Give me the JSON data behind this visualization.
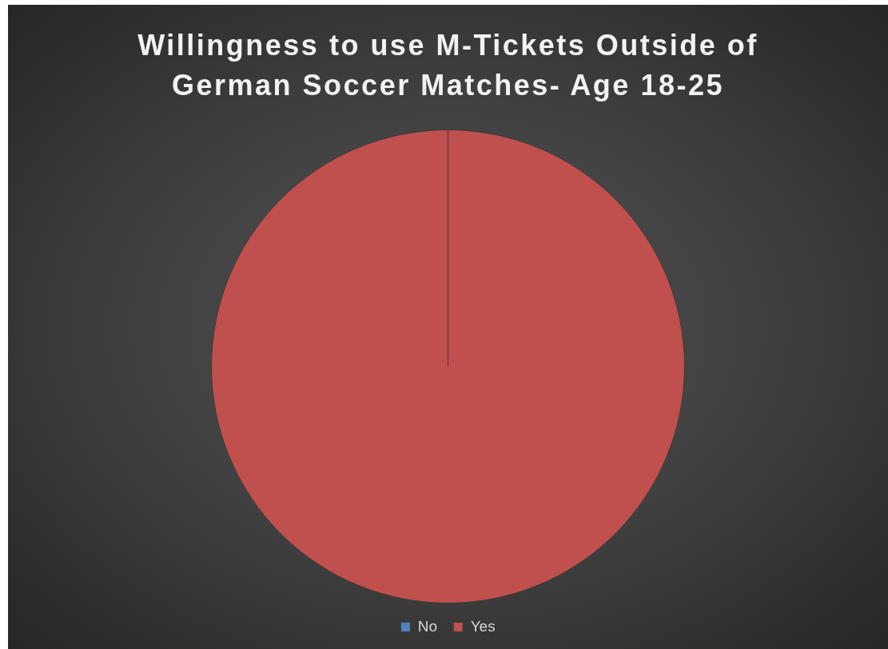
{
  "chart_data": {
    "type": "pie",
    "title": "Willingness to use M-Tickets Outside of German Soccer Matches- Age 18-25",
    "categories": [
      "No",
      "Yes"
    ],
    "values": [
      0,
      100
    ],
    "colors": [
      "#4f81bd",
      "#c0504d"
    ],
    "legend": "bottom"
  }
}
